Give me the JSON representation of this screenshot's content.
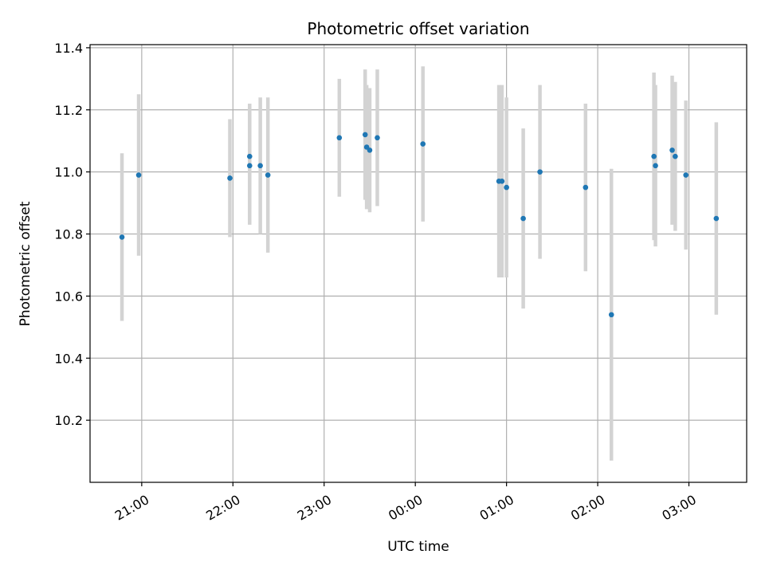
{
  "chart_data": {
    "type": "scatter",
    "title": "Photometric offset variation",
    "xlabel": "UTC time",
    "ylabel": "Photometric offset",
    "x_unit": "UTC time (HH:MM)",
    "xlim": [
      "20:26",
      "03:38"
    ],
    "ylim": [
      10.0,
      11.41
    ],
    "x_ticks": [
      "21:00",
      "22:00",
      "23:00",
      "00:00",
      "01:00",
      "02:00",
      "03:00"
    ],
    "y_ticks": [
      10.2,
      10.4,
      10.6,
      10.8,
      11.0,
      11.2,
      11.4
    ],
    "grid": true,
    "marker_color": "#1f77b4",
    "errorbar_color": "#d3d3d3",
    "points": [
      {
        "x": "20:47",
        "y": 10.79,
        "err": 0.27
      },
      {
        "x": "20:58",
        "y": 10.99,
        "err": 0.26
      },
      {
        "x": "21:58",
        "y": 10.98,
        "err": 0.19
      },
      {
        "x": "22:11",
        "y": 11.05,
        "err": 0.17
      },
      {
        "x": "22:11",
        "y": 11.02,
        "err": 0.19
      },
      {
        "x": "22:18",
        "y": 11.02,
        "err": 0.22
      },
      {
        "x": "22:23",
        "y": 10.99,
        "err": 0.25
      },
      {
        "x": "23:10",
        "y": 11.11,
        "err": 0.19
      },
      {
        "x": "23:27",
        "y": 11.12,
        "err": 0.21
      },
      {
        "x": "23:28",
        "y": 11.08,
        "err": 0.2
      },
      {
        "x": "23:30",
        "y": 11.07,
        "err": 0.2
      },
      {
        "x": "23:35",
        "y": 11.11,
        "err": 0.22
      },
      {
        "x": "00:05",
        "y": 11.09,
        "err": 0.25
      },
      {
        "x": "00:55",
        "y": 10.97,
        "err": 0.31
      },
      {
        "x": "00:57",
        "y": 10.97,
        "err": 0.31
      },
      {
        "x": "01:00",
        "y": 10.95,
        "err": 0.29
      },
      {
        "x": "01:11",
        "y": 10.85,
        "err": 0.29
      },
      {
        "x": "01:22",
        "y": 11.0,
        "err": 0.28
      },
      {
        "x": "01:52",
        "y": 10.95,
        "err": 0.27
      },
      {
        "x": "02:09",
        "y": 10.54,
        "err": 0.47
      },
      {
        "x": "02:37",
        "y": 11.05,
        "err": 0.27
      },
      {
        "x": "02:38",
        "y": 11.02,
        "err": 0.26
      },
      {
        "x": "02:49",
        "y": 11.07,
        "err": 0.24
      },
      {
        "x": "02:51",
        "y": 11.05,
        "err": 0.24
      },
      {
        "x": "02:58",
        "y": 10.99,
        "err": 0.24
      },
      {
        "x": "03:18",
        "y": 10.85,
        "err": 0.31
      }
    ]
  }
}
